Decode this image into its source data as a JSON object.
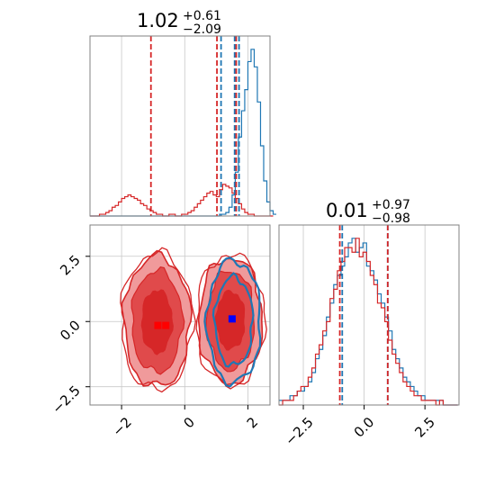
{
  "colors": {
    "blue": "#1f77b4",
    "red": "#d62728",
    "red_light": "#f09a9b",
    "red_mid": "#e04a4b",
    "grid": "#c8c8c8"
  },
  "chart_data": [
    {
      "type": "histogram",
      "panel": "top-left",
      "title": {
        "value": "1.02",
        "upper": "+0.61",
        "lower": "−2.09"
      },
      "xlim": [
        -3,
        2.7
      ],
      "grid": true,
      "vlines": {
        "blue": [
          1.15,
          1.58,
          1.72
        ],
        "red": [
          -1.07,
          1.02,
          1.63
        ]
      },
      "series": [
        {
          "color": "blue",
          "bin_start": -3,
          "bin_width": 0.1,
          "counts": [
            0,
            0,
            0,
            0,
            0,
            0,
            0,
            0,
            0,
            0,
            0,
            0,
            0,
            0,
            0,
            0,
            0,
            0,
            0,
            0,
            0,
            0,
            0,
            0,
            0,
            0,
            0,
            0,
            0,
            0,
            0,
            0,
            0,
            0,
            0,
            0,
            0,
            0,
            0,
            0,
            0,
            1,
            1,
            2,
            5,
            12,
            25,
            45,
            60,
            72,
            88,
            95,
            85,
            65,
            40,
            20,
            8,
            3,
            1
          ]
        },
        {
          "color": "red",
          "bin_start": -3,
          "bin_width": 0.1,
          "counts": [
            0,
            0,
            0,
            1,
            1,
            2,
            3,
            5,
            6,
            8,
            10,
            11,
            12,
            11,
            10,
            9,
            7,
            6,
            4,
            3,
            2,
            1,
            1,
            0,
            0,
            1,
            1,
            0,
            0,
            1,
            1,
            2,
            3,
            5,
            7,
            9,
            11,
            13,
            14,
            12,
            11,
            15,
            18,
            17,
            16,
            13,
            10,
            7,
            4,
            2,
            1,
            1,
            0,
            0,
            0,
            0,
            0,
            0
          ]
        }
      ]
    },
    {
      "type": "histogram",
      "panel": "bottom-right",
      "title": {
        "value": "0.01",
        "upper": "+0.97",
        "lower": "−0.98"
      },
      "xlim": [
        -3.5,
        3.9
      ],
      "xticks": [
        "−2.5",
        "0.0",
        "2.5"
      ],
      "grid": true,
      "vlines": {
        "blue": [
          -0.9,
          0.97
        ],
        "red": [
          -1.0,
          0.97
        ]
      },
      "series": [
        {
          "color": "blue",
          "bin_start": -3.5,
          "bin_width": 0.15,
          "counts": [
            1,
            1,
            1,
            2,
            2,
            3,
            3,
            4,
            5,
            7,
            10,
            12,
            15,
            19,
            22,
            26,
            28,
            30,
            32,
            35,
            36,
            33,
            34,
            35,
            30,
            29,
            27,
            24,
            22,
            19,
            16,
            12,
            10,
            8,
            6,
            5,
            4,
            3,
            2,
            2,
            1,
            1,
            1,
            1,
            1,
            0,
            0,
            0,
            0
          ]
        },
        {
          "color": "red",
          "bin_start": -3.5,
          "bin_width": 0.15,
          "counts": [
            0,
            1,
            1,
            1,
            2,
            3,
            4,
            4,
            6,
            8,
            11,
            13,
            16,
            18,
            23,
            25,
            29,
            31,
            34,
            34,
            33,
            36,
            32,
            33,
            31,
            28,
            26,
            22,
            21,
            18,
            14,
            11,
            9,
            7,
            5,
            4,
            3,
            2,
            2,
            1,
            1,
            1,
            1,
            0,
            1,
            0,
            0,
            0,
            0
          ]
        }
      ]
    },
    {
      "type": "contour",
      "panel": "bottom-left",
      "xlim": [
        -3,
        2.7
      ],
      "ylim": [
        -3.2,
        3.7
      ],
      "xticks": [
        "−2",
        "0",
        "2"
      ],
      "yticks": [
        "−2.5",
        "0.0",
        "2.5"
      ],
      "grid": true,
      "red_blobs": [
        {
          "cx": -0.88,
          "cy": 0.0,
          "levels": [
            {
              "rx": 1.05,
              "ry": 2.5
            },
            {
              "rx": 0.8,
              "ry": 1.95
            },
            {
              "rx": 0.48,
              "ry": 1.2
            }
          ]
        },
        {
          "cx": 1.45,
          "cy": 0.05,
          "levels": [
            {
              "rx": 1.0,
              "ry": 2.4
            },
            {
              "rx": 0.75,
              "ry": 1.9
            },
            {
              "rx": 0.45,
              "ry": 1.1
            }
          ]
        }
      ],
      "blue_blob": {
        "cx": 1.55,
        "cy": 0.0,
        "levels": [
          {
            "rx": 0.85,
            "ry": 2.35
          },
          {
            "rx": 0.6,
            "ry": 1.7
          }
        ]
      },
      "markers": [
        {
          "color": "blue",
          "x": 1.5,
          "y": 0.1
        },
        {
          "color": "red",
          "x": -0.85,
          "y": -0.15
        },
        {
          "color": "red",
          "x": -0.6,
          "y": -0.15
        }
      ]
    }
  ]
}
